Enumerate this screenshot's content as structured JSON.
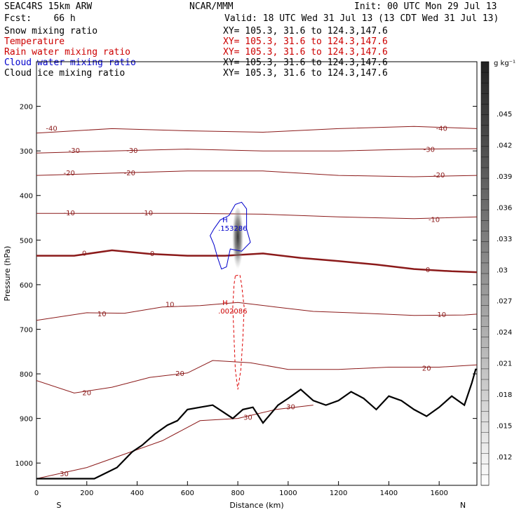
{
  "header": {
    "model": "SEAC4RS 15km ARW",
    "center": "NCAR/MMM",
    "init": "Init: 00 UTC Mon 29 Jul 13",
    "fcst": "Fcst:    66 h",
    "valid": "Valid: 18 UTC Wed 31 Jul 13 (13 CDT Wed 31 Jul 13)"
  },
  "fields": [
    {
      "name": "Snow mixing ratio",
      "xy": "XY= 105.3, 31.6 to 124.3,147.6",
      "color": "#000000",
      "xy_color": "#000000"
    },
    {
      "name": "Temperature",
      "xy": "XY= 105.3, 31.6 to 124.3,147.6",
      "color": "#cc0000",
      "xy_color": "#cc0000"
    },
    {
      "name": "Rain water mixing ratio",
      "xy": "XY= 105.3, 31.6 to 124.3,147.6",
      "color": "#cc0000",
      "xy_color": "#cc0000"
    },
    {
      "name": "Cloud water mixing ratio",
      "xy": "XY= 105.3, 31.6 to 124.3,147.6",
      "color": "#0000cc",
      "xy_color": "#000000"
    },
    {
      "name": "Cloud ice mixing ratio",
      "xy": "XY= 105.3, 31.6 to 124.3,147.6",
      "color": "#000000",
      "xy_color": "#000000"
    }
  ],
  "chart_data": {
    "type": "cross-section",
    "xlabel": "Distance (km)",
    "ylabel": "Pressure (hPa)",
    "xlim": [
      0,
      1750
    ],
    "ylim": [
      1050,
      100
    ],
    "x_ticks": [
      0,
      200,
      400,
      600,
      800,
      1000,
      1200,
      1400,
      1600
    ],
    "y_ticks": [
      200,
      300,
      400,
      500,
      600,
      700,
      800,
      900,
      1000
    ],
    "end_labels": {
      "left": "S",
      "right": "N"
    },
    "grid": false,
    "colorbar": {
      "unit": "g kg⁻¹",
      "ticks": [
        ".045",
        ".042",
        ".039",
        ".036",
        ".033",
        ".03",
        ".027",
        ".024",
        ".021",
        ".018",
        ".015",
        ".012"
      ]
    },
    "temperature_isotherms": [
      {
        "label": "-40",
        "label_positions": [
          [
            60,
            250
          ],
          [
            1610,
            250
          ]
        ],
        "points": [
          [
            0,
            260
          ],
          [
            300,
            250
          ],
          [
            600,
            255
          ],
          [
            900,
            258
          ],
          [
            1200,
            250
          ],
          [
            1500,
            245
          ],
          [
            1750,
            250
          ]
        ]
      },
      {
        "label": "-30",
        "label_positions": [
          [
            150,
            300
          ],
          [
            380,
            300
          ],
          [
            1560,
            297
          ]
        ],
        "points": [
          [
            0,
            305
          ],
          [
            300,
            300
          ],
          [
            600,
            296
          ],
          [
            900,
            300
          ],
          [
            1200,
            300
          ],
          [
            1500,
            296
          ],
          [
            1750,
            295
          ]
        ]
      },
      {
        "label": "-20",
        "label_positions": [
          [
            130,
            350
          ],
          [
            370,
            350
          ],
          [
            1600,
            355
          ]
        ],
        "points": [
          [
            0,
            355
          ],
          [
            300,
            350
          ],
          [
            600,
            345
          ],
          [
            900,
            345
          ],
          [
            1200,
            355
          ],
          [
            1500,
            358
          ],
          [
            1750,
            355
          ]
        ]
      },
      {
        "label": "-10",
        "label_positions": [
          [
            130,
            440
          ],
          [
            440,
            440
          ],
          [
            1580,
            455
          ]
        ],
        "points": [
          [
            0,
            440
          ],
          [
            300,
            440
          ],
          [
            600,
            440
          ],
          [
            900,
            442
          ],
          [
            1200,
            448
          ],
          [
            1500,
            452
          ],
          [
            1750,
            448
          ]
        ]
      },
      {
        "label": "0",
        "label_positions": [
          [
            190,
            530
          ],
          [
            460,
            531
          ],
          [
            1555,
            567
          ]
        ],
        "points": [
          [
            0,
            535
          ],
          [
            150,
            535
          ],
          [
            300,
            523
          ],
          [
            450,
            531
          ],
          [
            600,
            535
          ],
          [
            750,
            535
          ],
          [
            900,
            530
          ],
          [
            1050,
            540
          ],
          [
            1200,
            547
          ],
          [
            1350,
            555
          ],
          [
            1500,
            565
          ],
          [
            1650,
            570
          ],
          [
            1750,
            572
          ]
        ]
      },
      {
        "label": "10",
        "label_positions": [
          [
            260,
            666
          ],
          [
            530,
            645
          ],
          [
            1610,
            668
          ]
        ],
        "points": [
          [
            0,
            680
          ],
          [
            200,
            663
          ],
          [
            350,
            664
          ],
          [
            500,
            650
          ],
          [
            650,
            647
          ],
          [
            800,
            640
          ],
          [
            950,
            650
          ],
          [
            1100,
            660
          ],
          [
            1300,
            664
          ],
          [
            1500,
            669
          ],
          [
            1700,
            668
          ],
          [
            1750,
            666
          ]
        ]
      },
      {
        "label": "20",
        "label_positions": [
          [
            200,
            843
          ],
          [
            570,
            800
          ],
          [
            1550,
            788
          ]
        ],
        "points": [
          [
            0,
            815
          ],
          [
            150,
            843
          ],
          [
            300,
            830
          ],
          [
            450,
            808
          ],
          [
            600,
            798
          ],
          [
            700,
            770
          ],
          [
            850,
            775
          ],
          [
            1000,
            790
          ],
          [
            1200,
            790
          ],
          [
            1400,
            785
          ],
          [
            1600,
            785
          ],
          [
            1750,
            780
          ]
        ]
      },
      {
        "label": "30",
        "label_positions": [
          [
            110,
            1025
          ],
          [
            840,
            898
          ],
          [
            1010,
            875
          ]
        ],
        "points": [
          [
            0,
            1035
          ],
          [
            200,
            1010
          ],
          [
            350,
            980
          ],
          [
            500,
            950
          ],
          [
            650,
            905
          ],
          [
            800,
            900
          ],
          [
            950,
            880
          ],
          [
            1100,
            870
          ]
        ]
      }
    ],
    "terrain_outline": {
      "points": [
        [
          0,
          1035
        ],
        [
          230,
          1035
        ],
        [
          320,
          1010
        ],
        [
          380,
          975
        ],
        [
          420,
          960
        ],
        [
          470,
          935
        ],
        [
          520,
          915
        ],
        [
          560,
          905
        ],
        [
          600,
          880
        ],
        [
          650,
          875
        ],
        [
          700,
          870
        ],
        [
          740,
          885
        ],
        [
          780,
          900
        ],
        [
          820,
          880
        ],
        [
          860,
          875
        ],
        [
          900,
          910
        ],
        [
          960,
          870
        ],
        [
          1000,
          855
        ],
        [
          1050,
          835
        ],
        [
          1100,
          860
        ],
        [
          1150,
          870
        ],
        [
          1200,
          860
        ],
        [
          1250,
          840
        ],
        [
          1300,
          855
        ],
        [
          1350,
          880
        ],
        [
          1400,
          850
        ],
        [
          1450,
          860
        ],
        [
          1500,
          880
        ],
        [
          1550,
          895
        ],
        [
          1600,
          875
        ],
        [
          1650,
          850
        ],
        [
          1700,
          870
        ],
        [
          1730,
          820
        ],
        [
          1745,
          790
        ],
        [
          1750,
          790
        ]
      ]
    },
    "maxima": [
      {
        "field": "Cloud water mixing ratio",
        "label": "H",
        "value": ".153286",
        "x": 800,
        "p": 470
      },
      {
        "field": "Rain water mixing ratio",
        "label": "H",
        "value": ".002086",
        "x": 800,
        "p": 655
      }
    ],
    "cloud_water_contour": {
      "points": [
        [
          790,
          420
        ],
        [
          815,
          415
        ],
        [
          835,
          430
        ],
        [
          835,
          475
        ],
        [
          850,
          505
        ],
        [
          815,
          525
        ],
        [
          770,
          520
        ],
        [
          755,
          560
        ],
        [
          735,
          565
        ],
        [
          720,
          540
        ],
        [
          705,
          510
        ],
        [
          690,
          490
        ],
        [
          705,
          475
        ],
        [
          730,
          455
        ],
        [
          765,
          445
        ],
        [
          790,
          420
        ]
      ]
    },
    "rain_contour": {
      "points": [
        [
          790,
          580
        ],
        [
          808,
          578
        ],
        [
          815,
          600
        ],
        [
          825,
          650
        ],
        [
          820,
          720
        ],
        [
          812,
          790
        ],
        [
          800,
          835
        ],
        [
          790,
          790
        ],
        [
          785,
          720
        ],
        [
          780,
          650
        ],
        [
          785,
          600
        ],
        [
          790,
          580
        ]
      ]
    },
    "ice_column": {
      "x": 800,
      "p_top": 415,
      "p_bottom": 560,
      "peak_p": 500
    }
  }
}
